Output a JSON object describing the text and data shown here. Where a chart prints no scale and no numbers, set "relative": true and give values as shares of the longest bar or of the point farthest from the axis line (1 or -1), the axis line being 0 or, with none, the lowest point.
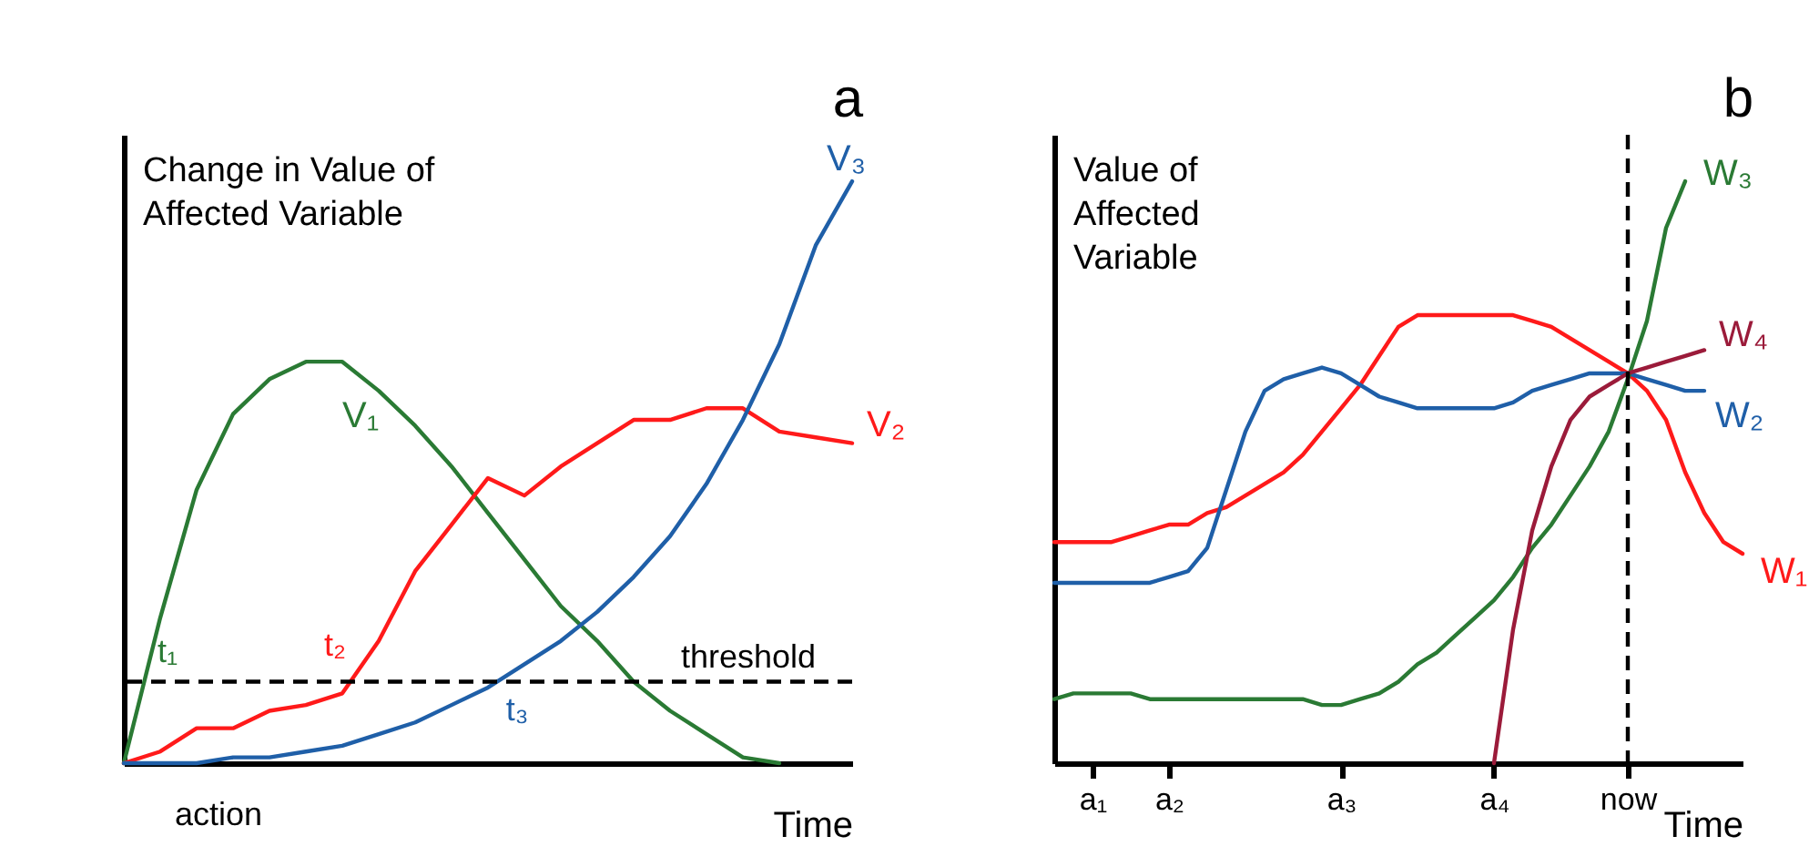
{
  "chart_data": [
    {
      "type": "line",
      "title": "a",
      "xlabel": "Time",
      "ylabel": "Change in Value of Affected Variable",
      "relative": true,
      "tick_labels": false,
      "legend": false,
      "grid": false,
      "marker": "none",
      "line_style": "solid",
      "categories": [
        null,
        null,
        null,
        null,
        null,
        null,
        null,
        null,
        null,
        null,
        null,
        null,
        null,
        null,
        null,
        null,
        null,
        null,
        null,
        null,
        null
      ],
      "series": [
        {
          "name": "V₁",
          "color": "#2a7a34",
          "values": [
            0,
            0.25,
            0.47,
            0.6,
            0.66,
            0.69,
            0.69,
            0.64,
            0.58,
            0.51,
            0.43,
            0.35,
            0.27,
            0.21,
            0.14,
            0.09,
            0.05,
            0.01,
            0,
            null,
            null
          ]
        },
        {
          "name": "V₂",
          "color": "#ff1a1a",
          "values": [
            0,
            0.02,
            0.06,
            0.06,
            0.09,
            0.1,
            0.12,
            0.21,
            0.33,
            0.41,
            0.49,
            0.46,
            0.51,
            0.55,
            0.59,
            0.59,
            0.61,
            0.61,
            0.57,
            0.56,
            0.55
          ]
        },
        {
          "name": "V₃",
          "color": "#1f5fa8",
          "values": [
            0,
            0,
            0,
            0.01,
            0.01,
            0.02,
            0.03,
            0.05,
            0.07,
            0.1,
            0.13,
            0.17,
            0.21,
            0.26,
            0.32,
            0.39,
            0.48,
            0.59,
            0.72,
            0.89,
            1
          ]
        }
      ],
      "ref_lines": [
        {
          "axis": "y",
          "value": 0.14,
          "label": "threshold",
          "color": "#000000",
          "line_style": "dashed"
        }
      ],
      "annotations": [
        "t₁",
        "t₂",
        "t₃",
        "action"
      ]
    },
    {
      "type": "line",
      "title": "b",
      "xlabel": "Time",
      "ylabel": "Value of Affected Variable",
      "relative": true,
      "tick_labels": "x",
      "legend": false,
      "grid": false,
      "marker": "none",
      "line_style": "solid",
      "categories": [
        null,
        null,
        "a₁",
        null,
        null,
        null,
        "a₂",
        null,
        null,
        null,
        null,
        null,
        null,
        null,
        null,
        "a₃",
        null,
        null,
        null,
        null,
        null,
        null,
        null,
        "a₄",
        null,
        null,
        null,
        null,
        null,
        null,
        "now",
        null,
        null,
        null,
        null,
        null,
        null
      ],
      "series": [
        {
          "name": "W₁",
          "color": "#ff1a1a",
          "values": [
            0.38,
            0.38,
            0.38,
            0.38,
            0.39,
            0.4,
            0.41,
            0.41,
            0.43,
            0.44,
            0.46,
            0.48,
            0.5,
            0.53,
            0.57,
            0.61,
            0.65,
            0.7,
            0.75,
            0.77,
            0.77,
            0.77,
            0.77,
            0.77,
            0.77,
            0.76,
            0.75,
            0.73,
            0.71,
            0.69,
            0.67,
            0.64,
            0.59,
            0.5,
            0.43,
            0.38,
            0.36
          ]
        },
        {
          "name": "W₂",
          "color": "#1f5fa8",
          "values": [
            0.31,
            0.31,
            0.31,
            0.31,
            0.31,
            0.31,
            0.32,
            0.33,
            0.37,
            0.47,
            0.57,
            0.64,
            0.66,
            0.67,
            0.68,
            0.67,
            0.65,
            0.63,
            0.62,
            0.61,
            0.61,
            0.61,
            0.61,
            0.61,
            0.62,
            0.64,
            0.65,
            0.66,
            0.67,
            0.67,
            0.67,
            0.66,
            0.65,
            0.64,
            0.64,
            null,
            null
          ]
        },
        {
          "name": "W₃",
          "color": "#2a7a34",
          "values": [
            0.11,
            0.12,
            0.12,
            0.12,
            0.12,
            0.11,
            0.11,
            0.11,
            0.11,
            0.11,
            0.11,
            0.11,
            0.11,
            0.11,
            0.1,
            0.1,
            0.11,
            0.12,
            0.14,
            0.17,
            0.19,
            0.22,
            0.25,
            0.28,
            0.32,
            0.37,
            0.41,
            0.46,
            0.51,
            0.57,
            0.66,
            0.76,
            0.92,
            1,
            null,
            null,
            null
          ]
        },
        {
          "name": "W₄",
          "color": "#9b1b3a",
          "values": [
            null,
            null,
            null,
            null,
            null,
            null,
            null,
            null,
            null,
            null,
            null,
            null,
            null,
            null,
            null,
            null,
            null,
            null,
            null,
            null,
            null,
            null,
            null,
            0,
            0.23,
            0.4,
            0.51,
            0.59,
            0.63,
            0.65,
            0.67,
            0.68,
            0.69,
            0.7,
            0.71,
            null,
            null
          ]
        }
      ],
      "ref_lines": [
        {
          "axis": "x",
          "value": "now",
          "color": "#000000",
          "line_style": "dashed"
        }
      ]
    }
  ]
}
